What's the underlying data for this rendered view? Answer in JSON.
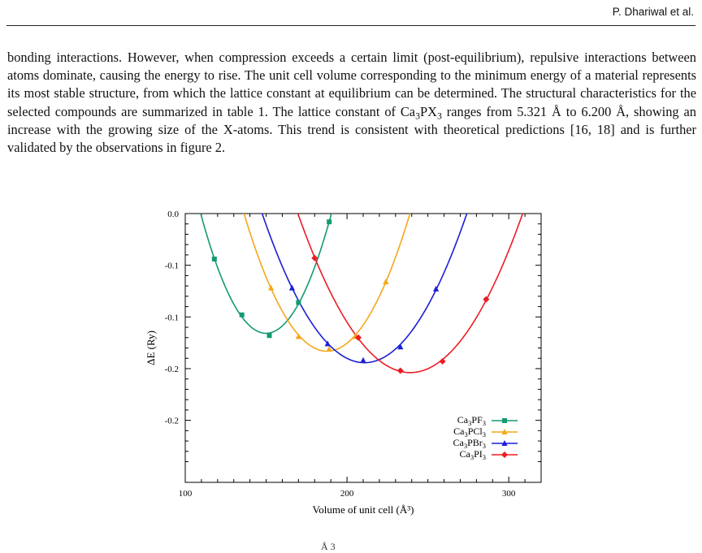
{
  "header": {
    "author": "P. Dhariwal et al."
  },
  "paragraph": {
    "t1": "bonding interactions. However, when compression exceeds a certain limit (post-equilibrium), repulsive interactions between atoms dominate, causing the energy to rise. The unit cell volume corresponding to the minimum energy of a material represents its most stable structure, from which the lattice constant at equilibrium can be determined. The structural characteristics for the selected compounds are summarized in table 1. The lattice constant of Ca",
    "sub1": "3",
    "t2": "PX",
    "sub2": "3",
    "t3": " ranges from 5.321 Å to 6.200 Å, showing an increase with the growing size of the X-atoms. This trend is consistent with theoretical predictions [16, 18] and is further validated by the observations in figure 2."
  },
  "chart_data": {
    "type": "line",
    "xlabel": "Volume of unit cell (Å³)",
    "ylabel": "ΔE (Ry)",
    "xlim": [
      100,
      320
    ],
    "ylim": [
      -0.26,
      0.0
    ],
    "x_ticks": [
      100,
      200,
      300
    ],
    "y_ticks": [
      {
        "value": 0.0,
        "label": "0.0"
      },
      {
        "value": -0.05,
        "label": "-0.1"
      },
      {
        "value": -0.1,
        "label": "-0.1"
      },
      {
        "value": -0.15,
        "label": "-0.2"
      },
      {
        "value": -0.2,
        "label": "-0.2"
      }
    ],
    "legend_position": "bottom-right",
    "series": [
      {
        "name": "Ca3PF3",
        "color": "#139a72",
        "marker": "square",
        "points": [
          [
            118,
            -0.044
          ],
          [
            135,
            -0.098
          ],
          [
            152,
            -0.118
          ],
          [
            170,
            -0.086
          ],
          [
            189,
            -0.008
          ]
        ]
      },
      {
        "name": "Ca3PCl3",
        "color": "#f5a71b",
        "marker": "triangle",
        "points": [
          [
            153,
            -0.072
          ],
          [
            170,
            -0.119
          ],
          [
            189,
            -0.131
          ],
          [
            205,
            -0.119
          ],
          [
            224,
            -0.066
          ]
        ]
      },
      {
        "name": "Ca3PBr3",
        "color": "#1a1fd6",
        "marker": "triangle",
        "points": [
          [
            166,
            -0.072
          ],
          [
            188,
            -0.126
          ],
          [
            210,
            -0.142
          ],
          [
            233,
            -0.129
          ],
          [
            255,
            -0.073
          ]
        ]
      },
      {
        "name": "Ca3PI3",
        "color": "#ec1c24",
        "marker": "diamond",
        "points": [
          [
            180,
            -0.043
          ],
          [
            207,
            -0.12
          ],
          [
            233,
            -0.152
          ],
          [
            259,
            -0.143
          ],
          [
            286,
            -0.083
          ]
        ]
      }
    ]
  },
  "legend": {
    "items": [
      {
        "base": "Ca",
        "s1": "3",
        "mid": "PF",
        "s2": "3"
      },
      {
        "base": "Ca",
        "s1": "3",
        "mid": "PCl",
        "s2": "3"
      },
      {
        "base": "Ca",
        "s1": "3",
        "mid": "PBr",
        "s2": "3"
      },
      {
        "base": "Ca",
        "s1": "3",
        "mid": "PI",
        "s2": "3"
      }
    ]
  },
  "footer": {
    "cut_text": "Å 3"
  }
}
